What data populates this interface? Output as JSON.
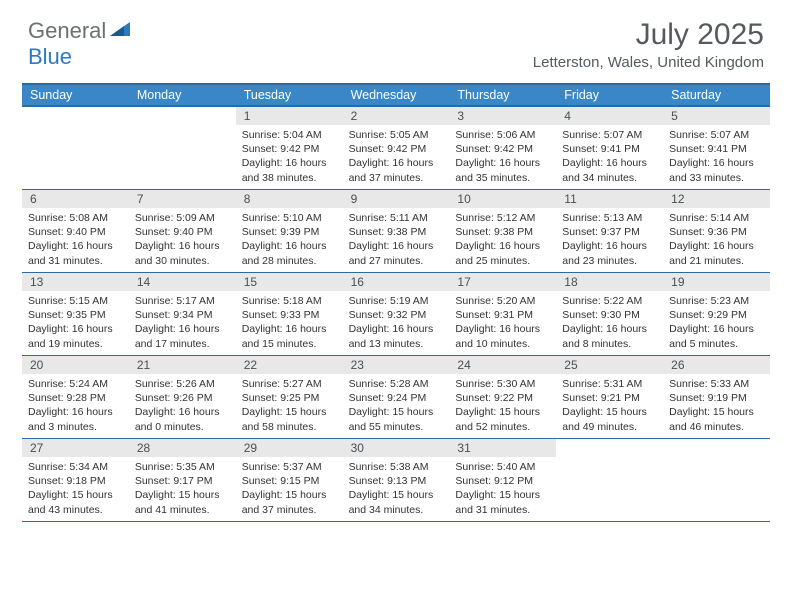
{
  "brand": {
    "word1": "General",
    "word2": "Blue",
    "word1_color": "#6b7074",
    "word2_color": "#2b7bbf",
    "icon_name": "triangle-icon"
  },
  "title": "July 2025",
  "location": "Letterston, Wales, United Kingdom",
  "colors": {
    "header_bg": "#3a87c8",
    "header_border": "#2b6ba3",
    "daynum_bg": "#e8e8e8",
    "text_dark": "#333333",
    "text_muted": "#555a5e"
  },
  "weekdays": [
    "Sunday",
    "Monday",
    "Tuesday",
    "Wednesday",
    "Thursday",
    "Friday",
    "Saturday"
  ],
  "weeks": [
    [
      null,
      null,
      {
        "n": "1",
        "sunrise": "5:04 AM",
        "sunset": "9:42 PM",
        "daylight": "16 hours and 38 minutes."
      },
      {
        "n": "2",
        "sunrise": "5:05 AM",
        "sunset": "9:42 PM",
        "daylight": "16 hours and 37 minutes."
      },
      {
        "n": "3",
        "sunrise": "5:06 AM",
        "sunset": "9:42 PM",
        "daylight": "16 hours and 35 minutes."
      },
      {
        "n": "4",
        "sunrise": "5:07 AM",
        "sunset": "9:41 PM",
        "daylight": "16 hours and 34 minutes."
      },
      {
        "n": "5",
        "sunrise": "5:07 AM",
        "sunset": "9:41 PM",
        "daylight": "16 hours and 33 minutes."
      }
    ],
    [
      {
        "n": "6",
        "sunrise": "5:08 AM",
        "sunset": "9:40 PM",
        "daylight": "16 hours and 31 minutes."
      },
      {
        "n": "7",
        "sunrise": "5:09 AM",
        "sunset": "9:40 PM",
        "daylight": "16 hours and 30 minutes."
      },
      {
        "n": "8",
        "sunrise": "5:10 AM",
        "sunset": "9:39 PM",
        "daylight": "16 hours and 28 minutes."
      },
      {
        "n": "9",
        "sunrise": "5:11 AM",
        "sunset": "9:38 PM",
        "daylight": "16 hours and 27 minutes."
      },
      {
        "n": "10",
        "sunrise": "5:12 AM",
        "sunset": "9:38 PM",
        "daylight": "16 hours and 25 minutes."
      },
      {
        "n": "11",
        "sunrise": "5:13 AM",
        "sunset": "9:37 PM",
        "daylight": "16 hours and 23 minutes."
      },
      {
        "n": "12",
        "sunrise": "5:14 AM",
        "sunset": "9:36 PM",
        "daylight": "16 hours and 21 minutes."
      }
    ],
    [
      {
        "n": "13",
        "sunrise": "5:15 AM",
        "sunset": "9:35 PM",
        "daylight": "16 hours and 19 minutes."
      },
      {
        "n": "14",
        "sunrise": "5:17 AM",
        "sunset": "9:34 PM",
        "daylight": "16 hours and 17 minutes."
      },
      {
        "n": "15",
        "sunrise": "5:18 AM",
        "sunset": "9:33 PM",
        "daylight": "16 hours and 15 minutes."
      },
      {
        "n": "16",
        "sunrise": "5:19 AM",
        "sunset": "9:32 PM",
        "daylight": "16 hours and 13 minutes."
      },
      {
        "n": "17",
        "sunrise": "5:20 AM",
        "sunset": "9:31 PM",
        "daylight": "16 hours and 10 minutes."
      },
      {
        "n": "18",
        "sunrise": "5:22 AM",
        "sunset": "9:30 PM",
        "daylight": "16 hours and 8 minutes."
      },
      {
        "n": "19",
        "sunrise": "5:23 AM",
        "sunset": "9:29 PM",
        "daylight": "16 hours and 5 minutes."
      }
    ],
    [
      {
        "n": "20",
        "sunrise": "5:24 AM",
        "sunset": "9:28 PM",
        "daylight": "16 hours and 3 minutes."
      },
      {
        "n": "21",
        "sunrise": "5:26 AM",
        "sunset": "9:26 PM",
        "daylight": "16 hours and 0 minutes."
      },
      {
        "n": "22",
        "sunrise": "5:27 AM",
        "sunset": "9:25 PM",
        "daylight": "15 hours and 58 minutes."
      },
      {
        "n": "23",
        "sunrise": "5:28 AM",
        "sunset": "9:24 PM",
        "daylight": "15 hours and 55 minutes."
      },
      {
        "n": "24",
        "sunrise": "5:30 AM",
        "sunset": "9:22 PM",
        "daylight": "15 hours and 52 minutes."
      },
      {
        "n": "25",
        "sunrise": "5:31 AM",
        "sunset": "9:21 PM",
        "daylight": "15 hours and 49 minutes."
      },
      {
        "n": "26",
        "sunrise": "5:33 AM",
        "sunset": "9:19 PM",
        "daylight": "15 hours and 46 minutes."
      }
    ],
    [
      {
        "n": "27",
        "sunrise": "5:34 AM",
        "sunset": "9:18 PM",
        "daylight": "15 hours and 43 minutes."
      },
      {
        "n": "28",
        "sunrise": "5:35 AM",
        "sunset": "9:17 PM",
        "daylight": "15 hours and 41 minutes."
      },
      {
        "n": "29",
        "sunrise": "5:37 AM",
        "sunset": "9:15 PM",
        "daylight": "15 hours and 37 minutes."
      },
      {
        "n": "30",
        "sunrise": "5:38 AM",
        "sunset": "9:13 PM",
        "daylight": "15 hours and 34 minutes."
      },
      {
        "n": "31",
        "sunrise": "5:40 AM",
        "sunset": "9:12 PM",
        "daylight": "15 hours and 31 minutes."
      },
      null,
      null
    ]
  ],
  "labels": {
    "sunrise_prefix": "Sunrise: ",
    "sunset_prefix": "Sunset: ",
    "daylight_prefix": "Daylight: "
  }
}
